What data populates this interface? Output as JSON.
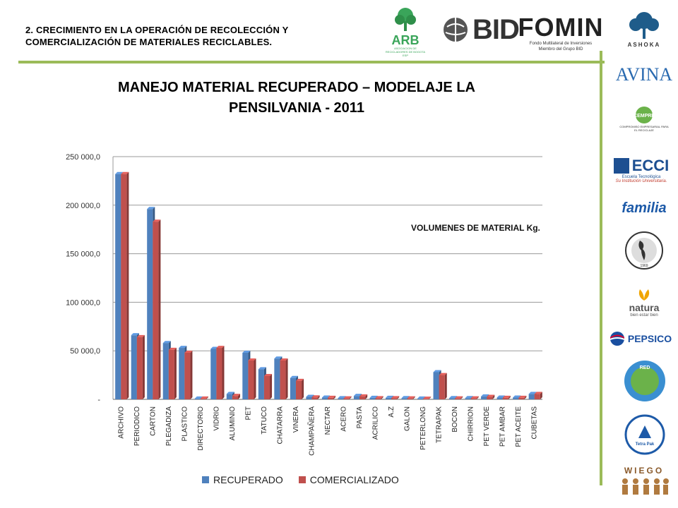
{
  "header": {
    "title_line1": "2. CRECIMIENTO EN  LA OPERACIÓN DE  RECOLECCIÓN Y",
    "title_line2": "COMERCIALIZACIÓN DE MATERIALES RECICLABLES."
  },
  "logos": {
    "arb": "ARB",
    "arb_sub": "ASOCIACION DE RECICLADORES DE BOGOTA ESP",
    "bid": "BID",
    "fomin": "FOMIN",
    "fomin_sub1": "Fondo Multilateral de Inversiones",
    "fomin_sub2": "Miembro del Grupo BID",
    "ashoka": "ASHOKA",
    "avina": "AVINA",
    "cempre": "CEMPRE",
    "cempre_sub": "COMPROMISO EMPRESARIAL PARA EL RECICLAJE",
    "ecci": "ECCI",
    "ecci_sub1": "Escuela Tecnológica",
    "ecci_sub2": "Su Institución Universitaria.",
    "familia": "familia",
    "fundacion_year": "1969",
    "natura": "natura",
    "natura_sub": "bien estar bien",
    "pepsico": "PEPSICO",
    "red": "RED",
    "tetrapak": "Tetra Pak",
    "wiego": "WIEGO"
  },
  "chart_data": {
    "type": "bar",
    "title": "MANEJO MATERIAL RECUPERADO – MODELAJE LA PENSILVANIA - 2011",
    "title_line1": "MANEJO MATERIAL RECUPERADO – MODELAJE LA",
    "title_line2": "PENSILVANIA - 2011",
    "annotation": "VOLUMENES DE MATERIAL Kg.",
    "ylim": [
      0,
      250000
    ],
    "yticks": [
      0,
      50000,
      100000,
      150000,
      200000,
      250000
    ],
    "ytick_labels": [
      "-",
      "50 000,0",
      "100 000,0",
      "150 000,0",
      "200 000,0",
      "250 000,0"
    ],
    "grid": true,
    "legend_position": "bottom",
    "categories": [
      "ARCHIVO",
      "PERIODICO",
      "CARTON",
      "PLEGADIZA",
      "PLASTICO",
      "DIRECTORIO",
      "VIDRIO",
      "ALUMINIO",
      "PET",
      "TATUCO",
      "CHATARRA",
      "VINERA",
      "CHAMPAÑERA",
      "NECTAR",
      "ACERO",
      "PASTA",
      "ACRILICO",
      "A.Z",
      "GALON",
      "PETERLONG",
      "TETRAPAK",
      "BOCON",
      "CHIRRION",
      "PET VERDE",
      "PET AMBAR",
      "PET ACEITE",
      "CUBETAS"
    ],
    "series": [
      {
        "name": "RECUPERADO",
        "color": "#4f81bd",
        "values": [
          232000,
          66000,
          196000,
          58000,
          53000,
          800,
          52000,
          5500,
          48000,
          31000,
          42000,
          22000,
          2500,
          1800,
          1200,
          3500,
          1500,
          1500,
          1300,
          800,
          28000,
          1300,
          1300,
          3000,
          1800,
          1800,
          5500
        ]
      },
      {
        "name": "COMERCIALIZADO",
        "color": "#c0504d",
        "values": [
          232000,
          64000,
          183000,
          51000,
          48000,
          800,
          53000,
          3500,
          40000,
          24000,
          40000,
          19000,
          2000,
          1500,
          1000,
          3000,
          1200,
          1200,
          1000,
          600,
          25000,
          1000,
          1000,
          2500,
          1500,
          1500,
          5500
        ]
      }
    ]
  }
}
